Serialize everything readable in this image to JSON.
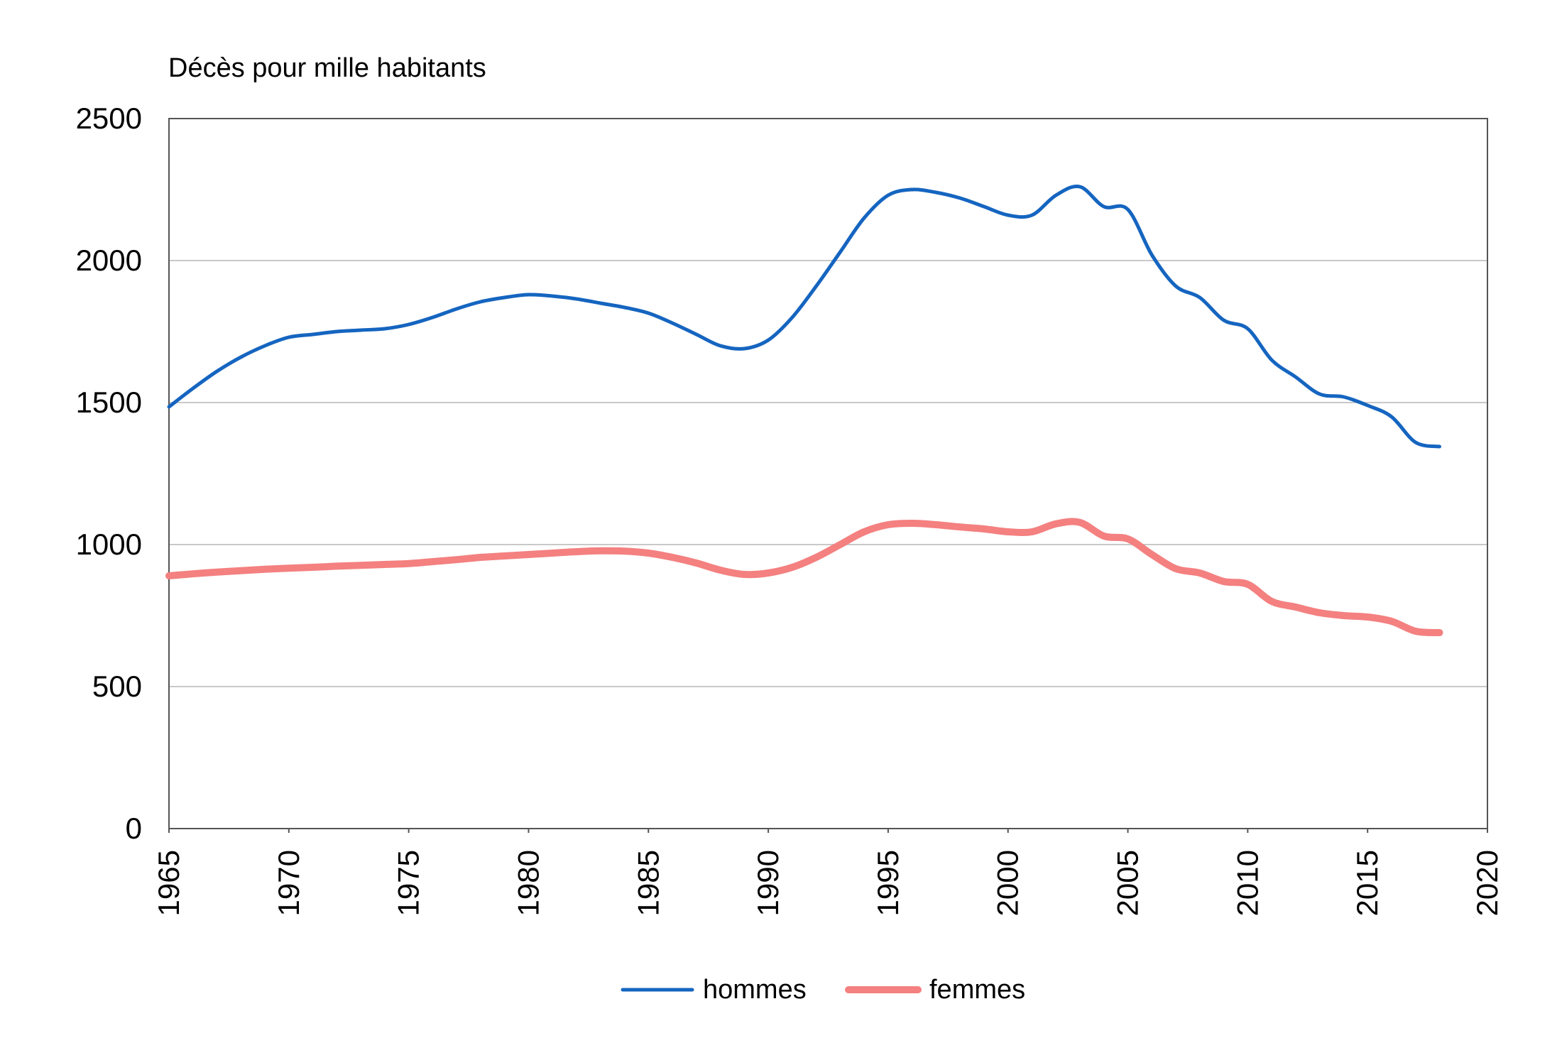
{
  "chart_data": {
    "type": "line",
    "ylabel": "Décès pour mille habitants",
    "xlabel": "",
    "title": "",
    "xlim": [
      1965,
      2020
    ],
    "ylim": [
      0,
      2500
    ],
    "x_ticks": [
      1965,
      1970,
      1975,
      1980,
      1985,
      1990,
      1995,
      2000,
      2005,
      2010,
      2015,
      2020
    ],
    "y_ticks": [
      0,
      500,
      1000,
      1500,
      2000,
      2500
    ],
    "grid": true,
    "legend_position": "bottom",
    "x": [
      1965,
      1966,
      1967,
      1968,
      1969,
      1970,
      1971,
      1972,
      1973,
      1974,
      1975,
      1976,
      1977,
      1978,
      1979,
      1980,
      1981,
      1982,
      1983,
      1984,
      1985,
      1986,
      1987,
      1988,
      1989,
      1990,
      1991,
      1992,
      1993,
      1994,
      1995,
      1996,
      1997,
      1998,
      1999,
      2000,
      2001,
      2002,
      2003,
      2004,
      2005,
      2006,
      2007,
      2008,
      2009,
      2010,
      2011,
      2012,
      2013,
      2014,
      2015,
      2016,
      2017,
      2018
    ],
    "series": [
      {
        "name": "hommes",
        "color": "#1565c0",
        "values": [
          1485,
          1550,
          1610,
          1660,
          1700,
          1730,
          1740,
          1750,
          1755,
          1760,
          1775,
          1800,
          1830,
          1855,
          1870,
          1880,
          1875,
          1865,
          1850,
          1835,
          1815,
          1780,
          1740,
          1700,
          1690,
          1720,
          1800,
          1910,
          2030,
          2150,
          2230,
          2250,
          2240,
          2220,
          2190,
          2160,
          2160,
          2230,
          2260,
          2190,
          2180,
          2020,
          1910,
          1870,
          1790,
          1760,
          1650,
          1590,
          1530,
          1520,
          1490,
          1450,
          1360,
          1345
        ],
        "color_dup_note": ""
      },
      {
        "name": "femmes",
        "color": "#f48080",
        "values": [
          890,
          897,
          903,
          908,
          913,
          917,
          920,
          924,
          927,
          930,
          933,
          940,
          947,
          955,
          960,
          965,
          970,
          975,
          978,
          977,
          970,
          955,
          935,
          910,
          895,
          900,
          920,
          955,
          1000,
          1045,
          1070,
          1075,
          1070,
          1062,
          1055,
          1045,
          1045,
          1073,
          1078,
          1030,
          1020,
          965,
          915,
          900,
          870,
          860,
          800,
          780,
          760,
          750,
          745,
          730,
          695,
          690
        ]
      }
    ]
  }
}
